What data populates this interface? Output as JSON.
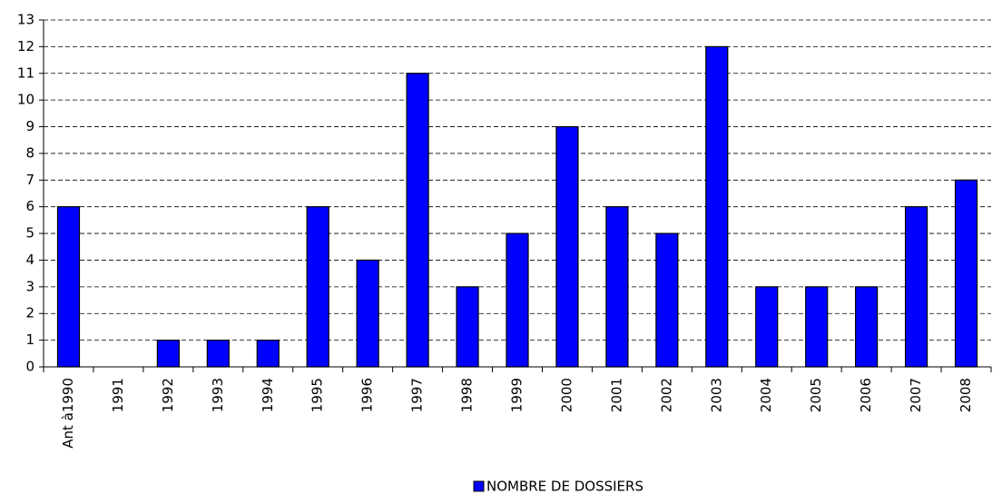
{
  "chart_data": {
    "type": "bar",
    "categories": [
      "Ant à1990",
      "1991",
      "1992",
      "1993",
      "1994",
      "1995",
      "1996",
      "1997",
      "1998",
      "1999",
      "2000",
      "2001",
      "2002",
      "2003",
      "2004",
      "2005",
      "2006",
      "2007",
      "2008"
    ],
    "series": [
      {
        "name": "NOMBRE DE DOSSIERS",
        "color": "#0000ff",
        "values": [
          6,
          0,
          1,
          1,
          1,
          6,
          4,
          11,
          3,
          5,
          9,
          6,
          5,
          12,
          3,
          3,
          3,
          6,
          7
        ]
      }
    ],
    "ylim": [
      0,
      13
    ],
    "yticks": [
      0,
      1,
      2,
      3,
      4,
      5,
      6,
      7,
      8,
      9,
      10,
      11,
      12,
      13
    ],
    "grid": true,
    "legend": "bottom"
  }
}
